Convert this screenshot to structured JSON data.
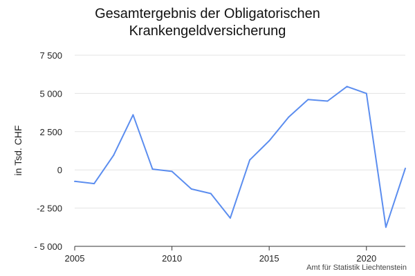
{
  "chart_data": {
    "type": "line",
    "title_lines": [
      "Gesamtergebnis der Obligatorischen",
      "Krankengeldversicherung"
    ],
    "ylabel": "in Tsd. CHF",
    "xlabel": "",
    "source": "Amt für Statistik Liechtenstein",
    "y_ticks": [
      7500,
      5000,
      2500,
      0,
      -2500,
      -5000
    ],
    "y_tick_labels": [
      "7 500",
      "5 000",
      "2 500",
      "0",
      "-2 500",
      "- 5 000"
    ],
    "x_ticks": [
      2005,
      2010,
      2015,
      2020
    ],
    "x_tick_labels": [
      "2005",
      "2010",
      "2015",
      "2020"
    ],
    "xlim": [
      2005,
      2022
    ],
    "ylim": [
      -5000,
      7500
    ],
    "grid": true,
    "series": [
      {
        "color": "#5b8def",
        "x": [
          2005,
          2006,
          2007,
          2008,
          2009,
          2010,
          2011,
          2012,
          2013,
          2014,
          2015,
          2016,
          2017,
          2018,
          2019,
          2020,
          2021,
          2022
        ],
        "values": [
          -750,
          -900,
          950,
          3600,
          50,
          -100,
          -1250,
          -1550,
          -3150,
          650,
          1900,
          3450,
          4600,
          4500,
          5450,
          5000,
          -3750,
          100
        ]
      }
    ]
  }
}
